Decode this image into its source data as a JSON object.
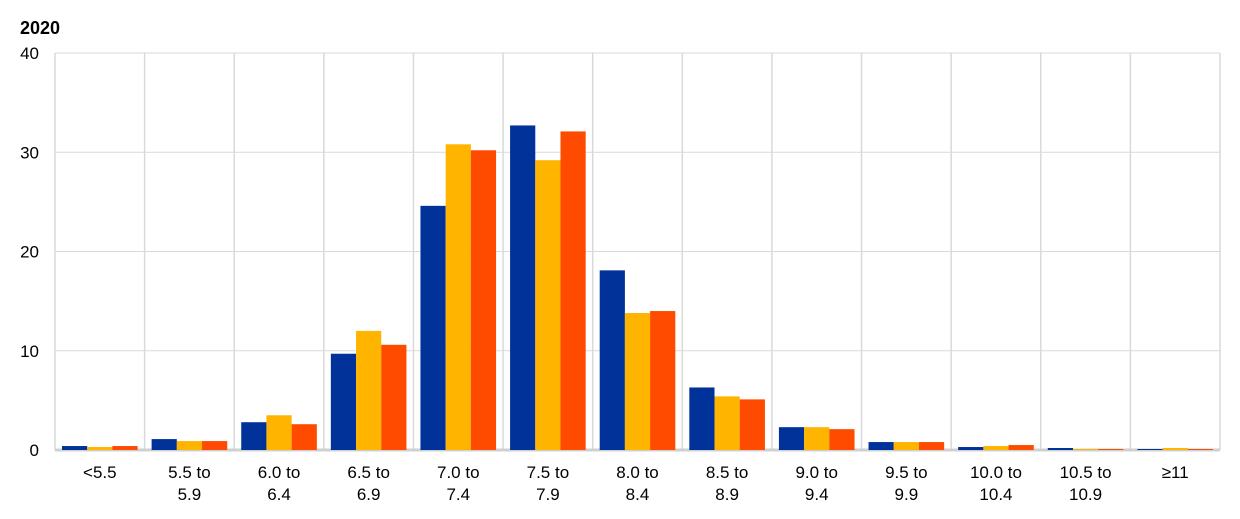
{
  "chart_data": {
    "type": "bar",
    "title": "2020",
    "xlabel": "",
    "ylabel": "",
    "ylim": [
      0,
      40
    ],
    "yticks": [
      "0",
      "10",
      "20",
      "30",
      "40"
    ],
    "grid": true,
    "legend": "none",
    "categories": [
      [
        "<5.5"
      ],
      [
        "5.5 to",
        "5.9"
      ],
      [
        "6.0 to",
        "6.4"
      ],
      [
        "6.5 to",
        "6.9"
      ],
      [
        "7.0 to",
        "7.4"
      ],
      [
        "7.5 to",
        "7.9"
      ],
      [
        "8.0 to",
        "8.4"
      ],
      [
        "8.5 to",
        "8.9"
      ],
      [
        "9.0 to",
        "9.4"
      ],
      [
        "9.5 to",
        "9.9"
      ],
      [
        "10.0 to",
        "10.4"
      ],
      [
        "10.5 to",
        "10.9"
      ],
      [
        "≥11"
      ]
    ],
    "series": [
      {
        "color": "#003299",
        "values": [
          0.4,
          1.1,
          2.8,
          9.7,
          24.6,
          32.7,
          18.1,
          6.3,
          2.3,
          0.8,
          0.3,
          0.2,
          0.1
        ]
      },
      {
        "color": "#FFB400",
        "values": [
          0.3,
          0.9,
          3.5,
          12.0,
          30.8,
          29.2,
          13.8,
          5.4,
          2.3,
          0.8,
          0.4,
          0.1,
          0.2
        ]
      },
      {
        "color": "#FF4B00",
        "values": [
          0.4,
          0.9,
          2.6,
          10.6,
          30.2,
          32.1,
          14.0,
          5.1,
          2.1,
          0.8,
          0.5,
          0.1,
          0.1
        ]
      }
    ]
  }
}
